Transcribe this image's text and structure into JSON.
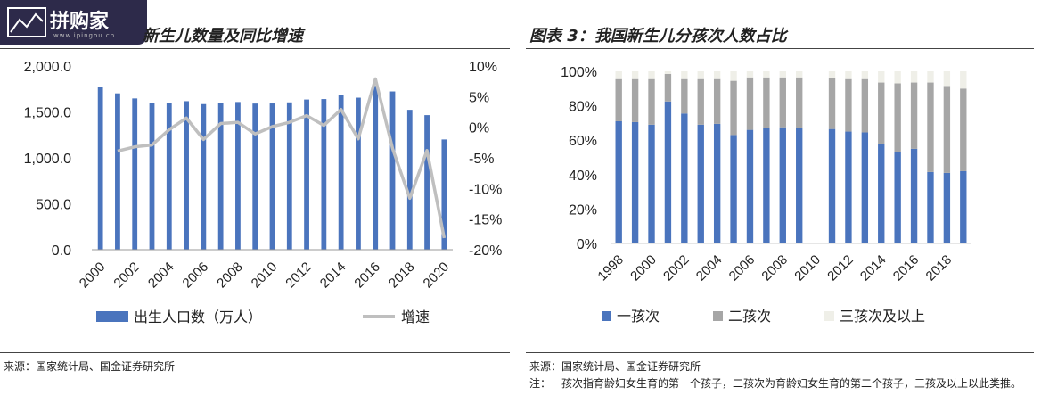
{
  "watermark": {
    "text": "拼购家",
    "sub": "www.ipingou.cn"
  },
  "left": {
    "title": "新生儿数量及同比增速",
    "source": "来源：国家统计局、国金证券研究所",
    "chart_data": {
      "type": "bar",
      "x": [
        "2000",
        "2001",
        "2002",
        "2003",
        "2004",
        "2005",
        "2006",
        "2007",
        "2008",
        "2009",
        "2010",
        "2011",
        "2012",
        "2013",
        "2014",
        "2015",
        "2016",
        "2017",
        "2018",
        "2019",
        "2020"
      ],
      "x_tick_labels": [
        "2000",
        "2002",
        "2004",
        "2006",
        "2008",
        "2010",
        "2012",
        "2014",
        "2016",
        "2018",
        "2020"
      ],
      "series": [
        {
          "name": "出生人口数（万人）",
          "type": "bar",
          "axis": "left",
          "values": [
            1771,
            1702,
            1647,
            1599,
            1593,
            1617,
            1585,
            1595,
            1608,
            1591,
            1592,
            1604,
            1635,
            1640,
            1687,
            1655,
            1786,
            1723,
            1523,
            1465,
            1200
          ]
        },
        {
          "name": "增速",
          "type": "line",
          "axis": "right",
          "values": [
            null,
            -3.9,
            -3.2,
            -2.9,
            -0.4,
            1.5,
            -2.0,
            0.6,
            0.8,
            -1.1,
            0.1,
            0.8,
            1.9,
            0.3,
            2.9,
            -1.9,
            7.9,
            -3.5,
            -11.6,
            -3.8,
            -18.1
          ]
        }
      ],
      "y_left": {
        "min": 0,
        "max": 2000,
        "ticks": [
          "2,000.0",
          "1,500.0",
          "1,000.0",
          "500.0",
          "0.0"
        ]
      },
      "y_right": {
        "min": -20,
        "max": 10,
        "ticks": [
          "10%",
          "5%",
          "0%",
          "-5%",
          "-10%",
          "-15%",
          "-20%"
        ]
      },
      "colors": {
        "bar": "#4a74bd",
        "line": "#bfbfbf"
      },
      "legend": "bottom"
    }
  },
  "right": {
    "title": "图表 3：我国新生儿分孩次人数占比",
    "source": "来源：国家统计局、国金证券研究所",
    "note": "注：一孩次指育龄妇女生育的第一个孩子，二孩次为育龄妇女生育的第二个孩子，三孩及以上以此类推。",
    "chart_data": {
      "type": "bar",
      "stacked": true,
      "x": [
        "1998",
        "1999",
        "2000",
        "2001",
        "2002",
        "2003",
        "2004",
        "2005",
        "2006",
        "2007",
        "2008",
        "2009",
        "2010",
        "2011",
        "2012",
        "2013",
        "2014",
        "2015",
        "2016",
        "2017",
        "2018",
        "2019"
      ],
      "x_tick_labels": [
        "1998",
        "2000",
        "2002",
        "2004",
        "2006",
        "2008",
        "2010",
        "2012",
        "2014",
        "2016",
        "2018"
      ],
      "series": [
        {
          "name": "一孩次",
          "values": [
            71,
            70.5,
            69,
            82.5,
            75.5,
            69,
            69.5,
            63,
            66,
            67,
            67.5,
            67,
            null,
            66.5,
            65,
            64.5,
            58,
            53,
            55,
            41.5,
            41,
            42
          ]
        },
        {
          "name": "二孩次",
          "values": [
            24.5,
            25,
            26.5,
            16,
            20,
            26.5,
            26,
            31.5,
            30.5,
            29.5,
            29,
            29.5,
            null,
            29.5,
            30.5,
            31,
            35.5,
            40,
            38.5,
            52,
            50.5,
            48
          ]
        },
        {
          "name": "三孩次及以上",
          "values": [
            4.5,
            4.5,
            4.5,
            1.5,
            4.5,
            4.5,
            4.5,
            5.5,
            3.5,
            3.5,
            3.5,
            3.5,
            null,
            4,
            4.5,
            4.5,
            6.5,
            7,
            6.5,
            6.5,
            8.5,
            10
          ]
        }
      ],
      "y": {
        "min": 0,
        "max": 100,
        "ticks": [
          "100%",
          "80%",
          "60%",
          "40%",
          "20%",
          "0%"
        ]
      },
      "colors": {
        "s1": "#4a74bd",
        "s2": "#a6a6a6",
        "s3": "#efefe8"
      },
      "legend": "bottom"
    }
  }
}
